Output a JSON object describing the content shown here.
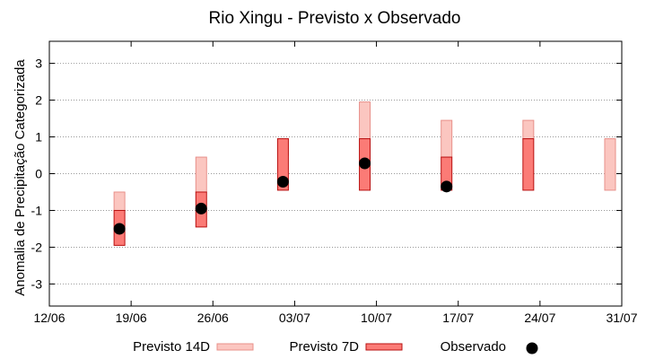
{
  "chart_data": {
    "type": "range-bar",
    "title": "Rio Xingu - Previsto x Observado",
    "ylabel": "Anomalia de Precipitação Categorizada",
    "xlabel": "",
    "x_ticks": [
      "12/06",
      "19/06",
      "26/06",
      "03/07",
      "10/07",
      "17/07",
      "24/07",
      "31/07"
    ],
    "y_ticks": [
      "-3",
      "-2",
      "-1",
      "0",
      "1",
      "2",
      "3"
    ],
    "ylim": [
      -3.6,
      3.6
    ],
    "xlim_days": [
      0,
      49
    ],
    "grid": "horizontal-dotted",
    "legend_placement": "bottom",
    "colors": {
      "previsto_14d_fill": "#fbc6c0",
      "previsto_14d_stroke": "#e8908a",
      "previsto_7d_fill": "#fb7b76",
      "previsto_7d_stroke": "#b81010",
      "observado": "#000000"
    },
    "series": [
      {
        "name": "Previsto 14D",
        "kind": "range",
        "points": [
          {
            "date": "18/06",
            "low": -1.0,
            "high": -0.5
          },
          {
            "date": "25/06",
            "low": -0.5,
            "high": 0.45
          },
          {
            "date": "02/07",
            "low": 0.5,
            "high": 0.95
          },
          {
            "date": "09/07",
            "low": 0.95,
            "high": 1.95
          },
          {
            "date": "16/07",
            "low": 0.45,
            "high": 1.45
          },
          {
            "date": "23/07",
            "low": 0.95,
            "high": 1.45
          },
          {
            "date": "30/07",
            "low": -0.45,
            "high": 0.95
          }
        ]
      },
      {
        "name": "Previsto 7D",
        "kind": "range",
        "points": [
          {
            "date": "18/06",
            "low": -1.95,
            "high": -1.0
          },
          {
            "date": "25/06",
            "low": -1.45,
            "high": -0.5
          },
          {
            "date": "02/07",
            "low": -0.45,
            "high": 0.95
          },
          {
            "date": "09/07",
            "low": -0.45,
            "high": 0.95
          },
          {
            "date": "16/07",
            "low": -0.45,
            "high": 0.45
          },
          {
            "date": "23/07",
            "low": -0.45,
            "high": 0.95
          }
        ]
      },
      {
        "name": "Observado",
        "kind": "point",
        "points": [
          {
            "date": "18/06",
            "value": -1.5
          },
          {
            "date": "25/06",
            "value": -0.95
          },
          {
            "date": "02/07",
            "value": -0.22
          },
          {
            "date": "09/07",
            "value": 0.28
          },
          {
            "date": "16/07",
            "value": -0.35
          }
        ]
      }
    ],
    "legend": [
      "Previsto 14D",
      "Previsto 7D",
      "Observado"
    ]
  }
}
